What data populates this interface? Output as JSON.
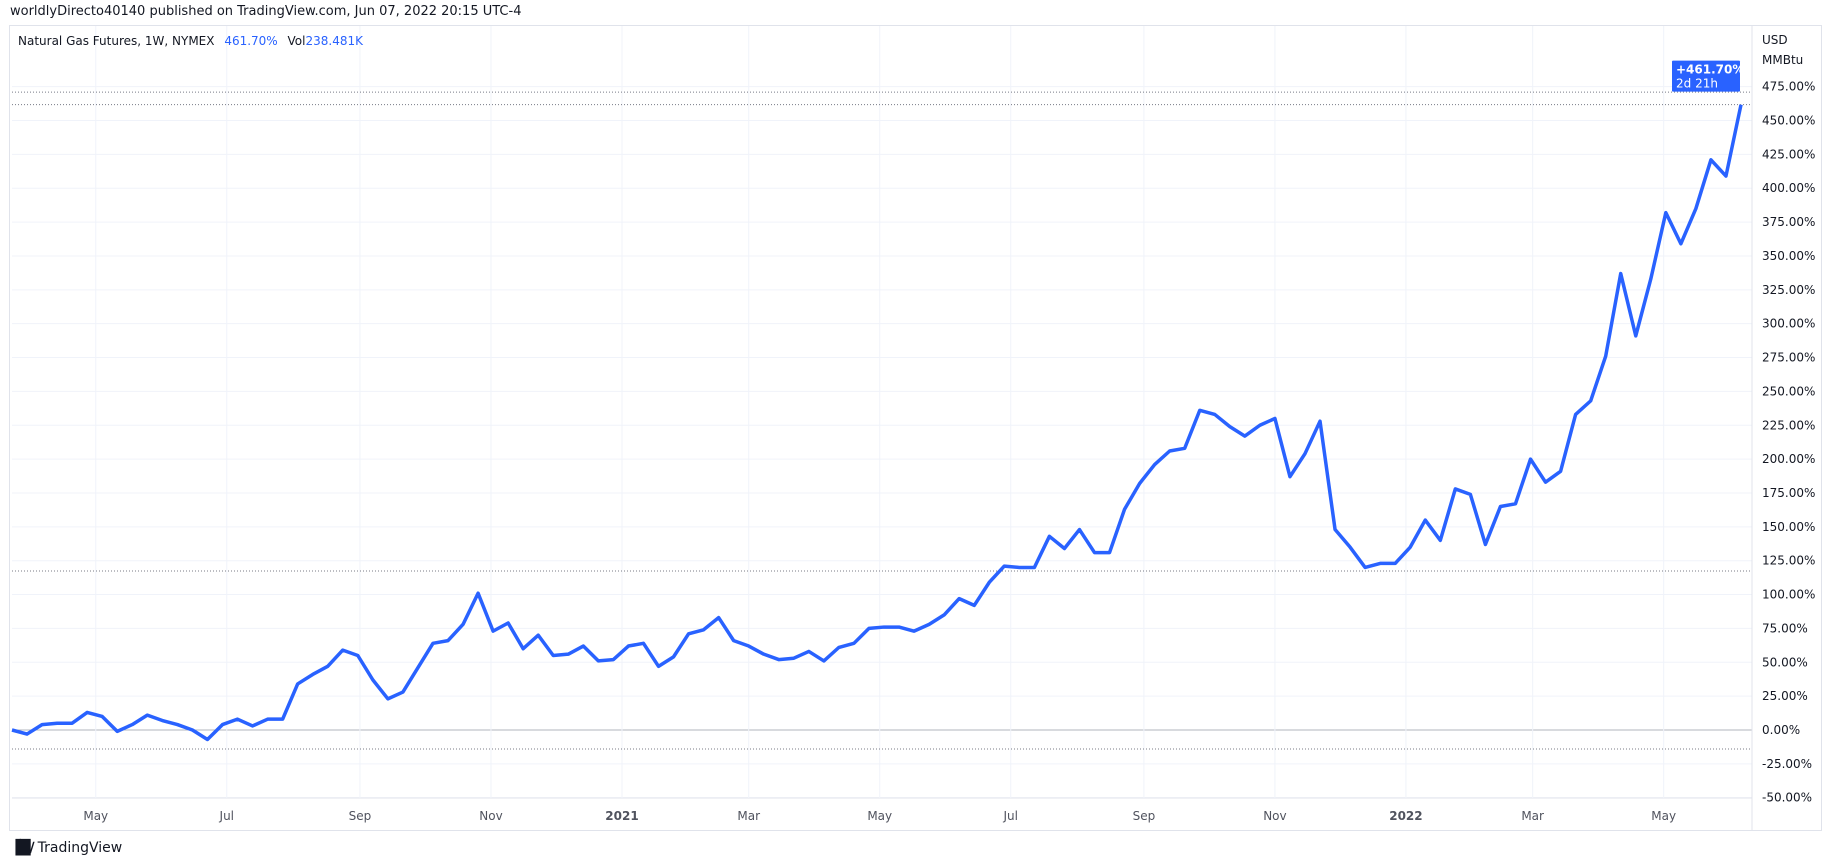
{
  "header": {
    "publish_line": "worldlyDirecto40140 published on TradingView.com, Jun 07, 2022 20:15 UTC-4"
  },
  "legend": {
    "symbol": "Natural Gas Futures, 1W, NYMEX",
    "change": "461.70%",
    "vol_label": "Vol",
    "vol_value": "238.481K"
  },
  "axis": {
    "currency": "USD",
    "unit": "MMBtu"
  },
  "price_label": {
    "value": "+461.70%",
    "countdown": "2d 21h"
  },
  "footer": {
    "brand": "TradingView",
    "logo": "TV"
  },
  "colors": {
    "line": "#2962ff",
    "label_bg": "#2962ff",
    "grid": "#f0f3fa",
    "zero": "#b2b5be"
  },
  "chart_data": {
    "type": "line",
    "title": "Natural Gas Futures, 1W, NYMEX",
    "ylabel": "USD MMBtu",
    "y_unit": "%",
    "ylim": [
      -50,
      475
    ],
    "y_ticks": [
      "475.00%",
      "450.00%",
      "425.00%",
      "400.00%",
      "375.00%",
      "350.00%",
      "325.00%",
      "300.00%",
      "275.00%",
      "250.00%",
      "225.00%",
      "200.00%",
      "175.00%",
      "150.00%",
      "125.00%",
      "100.00%",
      "75.00%",
      "50.00%",
      "25.00%",
      "0.00%",
      "-25.00%",
      "-50.00%"
    ],
    "x_ticks": [
      {
        "label": "May",
        "date": "2020-05-01"
      },
      {
        "label": "Jul",
        "date": "2020-07-01"
      },
      {
        "label": "Sep",
        "date": "2020-09-01"
      },
      {
        "label": "Nov",
        "date": "2020-11-01"
      },
      {
        "label": "2021",
        "date": "2021-01-01",
        "bold": true
      },
      {
        "label": "Mar",
        "date": "2021-03-01"
      },
      {
        "label": "May",
        "date": "2021-05-01"
      },
      {
        "label": "Jul",
        "date": "2021-07-01"
      },
      {
        "label": "Sep",
        "date": "2021-09-01"
      },
      {
        "label": "Nov",
        "date": "2021-11-01"
      },
      {
        "label": "2022",
        "date": "2022-01-01",
        "bold": true
      },
      {
        "label": "Mar",
        "date": "2022-03-01"
      },
      {
        "label": "May",
        "date": "2022-05-01"
      }
    ],
    "grid": true,
    "reference_lines": [
      471,
      461.7,
      117.4,
      -14
    ],
    "x": [
      "2020-03-23",
      "2020-03-30",
      "2020-04-06",
      "2020-04-13",
      "2020-04-20",
      "2020-04-27",
      "2020-05-04",
      "2020-05-11",
      "2020-05-18",
      "2020-05-25",
      "2020-06-01",
      "2020-06-08",
      "2020-06-15",
      "2020-06-22",
      "2020-06-29",
      "2020-07-06",
      "2020-07-13",
      "2020-07-20",
      "2020-07-27",
      "2020-08-03",
      "2020-08-10",
      "2020-08-17",
      "2020-08-24",
      "2020-08-31",
      "2020-09-07",
      "2020-09-14",
      "2020-09-21",
      "2020-09-28",
      "2020-10-05",
      "2020-10-12",
      "2020-10-19",
      "2020-10-26",
      "2020-11-02",
      "2020-11-09",
      "2020-11-16",
      "2020-11-23",
      "2020-11-30",
      "2020-12-07",
      "2020-12-14",
      "2020-12-21",
      "2020-12-28",
      "2021-01-04",
      "2021-01-11",
      "2021-01-18",
      "2021-01-25",
      "2021-02-01",
      "2021-02-08",
      "2021-02-15",
      "2021-02-22",
      "2021-03-01",
      "2021-03-08",
      "2021-03-15",
      "2021-03-22",
      "2021-03-29",
      "2021-04-05",
      "2021-04-12",
      "2021-04-19",
      "2021-04-26",
      "2021-05-03",
      "2021-05-10",
      "2021-05-17",
      "2021-05-24",
      "2021-05-31",
      "2021-06-07",
      "2021-06-14",
      "2021-06-21",
      "2021-06-28",
      "2021-07-05",
      "2021-07-12",
      "2021-07-19",
      "2021-07-26",
      "2021-08-02",
      "2021-08-09",
      "2021-08-16",
      "2021-08-23",
      "2021-08-30",
      "2021-09-06",
      "2021-09-13",
      "2021-09-20",
      "2021-09-27",
      "2021-10-04",
      "2021-10-11",
      "2021-10-18",
      "2021-10-25",
      "2021-11-01",
      "2021-11-08",
      "2021-11-15",
      "2021-11-22",
      "2021-11-29",
      "2021-12-06",
      "2021-12-13",
      "2021-12-20",
      "2021-12-27",
      "2022-01-03",
      "2022-01-10",
      "2022-01-17",
      "2022-01-24",
      "2022-01-31",
      "2022-02-07",
      "2022-02-14",
      "2022-02-21",
      "2022-02-28",
      "2022-03-07",
      "2022-03-14",
      "2022-03-21",
      "2022-03-28",
      "2022-04-04",
      "2022-04-11",
      "2022-04-18",
      "2022-04-25",
      "2022-05-02",
      "2022-05-09",
      "2022-05-16",
      "2022-05-23",
      "2022-05-30",
      "2022-06-06"
    ],
    "values": [
      0,
      -3,
      4,
      5,
      5,
      13,
      10,
      -1,
      4,
      11,
      7,
      4,
      0,
      -7,
      4,
      8,
      3,
      8,
      8,
      34,
      41,
      47,
      59,
      55,
      37,
      23,
      28,
      46,
      64,
      66,
      78,
      101,
      73,
      79,
      60,
      70,
      55,
      56,
      62,
      51,
      52,
      62,
      64,
      47,
      54,
      71,
      74,
      83,
      66,
      62,
      56,
      52,
      53,
      58,
      51,
      61,
      64,
      75,
      76,
      76,
      73,
      78,
      85,
      97,
      92,
      109,
      121,
      120,
      120,
      143,
      134,
      148,
      131,
      131,
      163,
      182,
      196,
      206,
      208,
      236,
      233,
      224,
      217,
      225,
      230,
      187,
      204,
      228,
      148,
      135,
      120,
      123,
      123,
      135,
      155,
      140,
      178,
      174,
      137,
      165,
      167,
      200,
      183,
      191,
      233,
      243,
      276,
      337,
      291,
      333,
      382,
      359,
      385,
      421,
      409,
      461.7
    ]
  }
}
